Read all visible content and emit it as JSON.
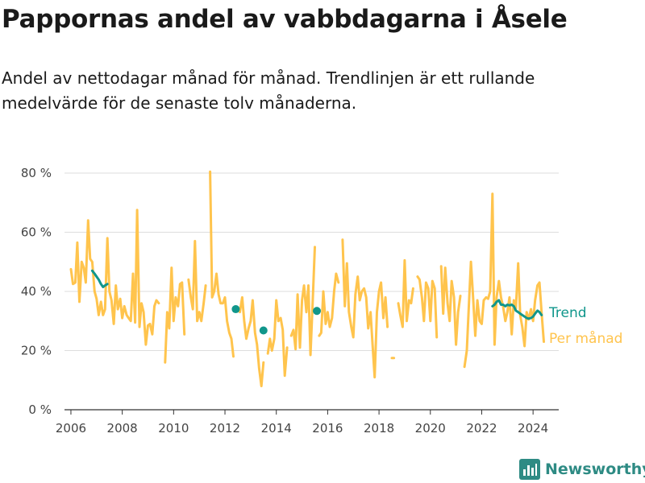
{
  "title": "Pappornas andel av vabbdagarna i Åsele",
  "subtitle": "Andel av nettodagar månad för månad. Trendlinjen är ett rullande medelvärde för de senaste tolv månaderna.",
  "brand": "Newsworthy",
  "colors": {
    "per_month": "#ffc44d",
    "trend": "#10968b",
    "grid": "#dddddd",
    "axis": "#333333",
    "brand": "#2e8b84"
  },
  "chart_data": {
    "type": "line",
    "xlabel": "",
    "ylabel": "",
    "x_range": [
      2005.75,
      2025.0
    ],
    "ylim": [
      0,
      80
    ],
    "y_ticks": [
      0,
      20,
      40,
      60,
      80
    ],
    "y_tick_labels": [
      "0 %",
      "20 %",
      "40 %",
      "60 %",
      "80 %"
    ],
    "x_ticks": [
      2006,
      2008,
      2010,
      2012,
      2014,
      2016,
      2018,
      2020,
      2022,
      2024
    ],
    "grid": "horizontal",
    "legend_placement": "right",
    "series": [
      {
        "name": "Per månad",
        "color": "#ffc44d",
        "points": [
          [
            2006.0,
            47.5
          ],
          [
            2006.08,
            42.5
          ],
          [
            2006.17,
            43.0
          ],
          [
            2006.25,
            56.5
          ],
          [
            2006.33,
            36.5
          ],
          [
            2006.42,
            50.0
          ],
          [
            2006.5,
            48.0
          ],
          [
            2006.58,
            43.0
          ],
          [
            2006.67,
            64.0
          ],
          [
            2006.75,
            51.0
          ],
          [
            2006.83,
            50.0
          ],
          [
            2006.92,
            40.0
          ],
          [
            2007.0,
            37.5
          ],
          [
            2007.08,
            32.0
          ],
          [
            2007.17,
            36.5
          ],
          [
            2007.25,
            32.0
          ],
          [
            2007.33,
            34.0
          ],
          [
            2007.42,
            58.0
          ],
          [
            2007.5,
            40.0
          ],
          [
            2007.58,
            37.0
          ],
          [
            2007.67,
            29.0
          ],
          [
            2007.75,
            42.0
          ],
          [
            2007.83,
            34.0
          ],
          [
            2007.92,
            37.5
          ],
          [
            2008.0,
            31.0
          ],
          [
            2008.08,
            35.0
          ],
          [
            2008.17,
            32.0
          ],
          [
            2008.25,
            31.0
          ],
          [
            2008.33,
            30.0
          ],
          [
            2008.42,
            46.0
          ],
          [
            2008.5,
            29.5
          ],
          [
            2008.58,
            67.5
          ],
          [
            2008.67,
            28.0
          ],
          [
            2008.75,
            36.0
          ],
          [
            2008.83,
            33.0
          ],
          [
            2008.92,
            22.0
          ],
          [
            2009.0,
            28.5
          ],
          [
            2009.08,
            29.0
          ],
          [
            2009.17,
            25.5
          ],
          [
            2009.25,
            35.0
          ],
          [
            2009.33,
            37.0
          ],
          [
            2009.42,
            36.0
          ],
          [
            2009.5,
            null
          ],
          [
            2009.58,
            null
          ],
          [
            2009.67,
            16.0
          ],
          [
            2009.75,
            33.0
          ],
          [
            2009.83,
            27.5
          ],
          [
            2009.92,
            48.0
          ],
          [
            2010.0,
            30.0
          ],
          [
            2010.08,
            38.0
          ],
          [
            2010.17,
            35.0
          ],
          [
            2010.25,
            42.5
          ],
          [
            2010.33,
            43.0
          ],
          [
            2010.42,
            25.5
          ],
          [
            2010.5,
            null
          ],
          [
            2010.58,
            44.0
          ],
          [
            2010.67,
            38.0
          ],
          [
            2010.75,
            34.0
          ],
          [
            2010.83,
            57.0
          ],
          [
            2010.92,
            30.0
          ],
          [
            2011.0,
            33.0
          ],
          [
            2011.08,
            30.0
          ],
          [
            2011.17,
            36.0
          ],
          [
            2011.25,
            42.0
          ],
          [
            2011.33,
            null
          ],
          [
            2011.42,
            80.5
          ],
          [
            2011.5,
            38.0
          ],
          [
            2011.58,
            40.0
          ],
          [
            2011.67,
            46.0
          ],
          [
            2011.75,
            39.0
          ],
          [
            2011.83,
            36.0
          ],
          [
            2011.92,
            36.0
          ],
          [
            2012.0,
            38.0
          ],
          [
            2012.08,
            30.0
          ],
          [
            2012.17,
            26.0
          ],
          [
            2012.25,
            24.0
          ],
          [
            2012.33,
            18.0
          ],
          [
            2012.42,
            null
          ],
          [
            2012.5,
            null
          ],
          [
            2012.58,
            33.0
          ],
          [
            2012.67,
            38.0
          ],
          [
            2012.75,
            30.0
          ],
          [
            2012.83,
            24.0
          ],
          [
            2012.92,
            27.5
          ],
          [
            2013.0,
            30.0
          ],
          [
            2013.08,
            37.0
          ],
          [
            2013.17,
            26.0
          ],
          [
            2013.25,
            22.0
          ],
          [
            2013.33,
            14.0
          ],
          [
            2013.42,
            8.0
          ],
          [
            2013.5,
            16.0
          ],
          [
            2013.58,
            null
          ],
          [
            2013.67,
            19.0
          ],
          [
            2013.75,
            24.0
          ],
          [
            2013.83,
            20.0
          ],
          [
            2013.92,
            24.0
          ],
          [
            2014.0,
            37.0
          ],
          [
            2014.08,
            30.0
          ],
          [
            2014.17,
            31.0
          ],
          [
            2014.25,
            27.0
          ],
          [
            2014.33,
            11.5
          ],
          [
            2014.42,
            21.0
          ],
          [
            2014.5,
            null
          ],
          [
            2014.58,
            25.0
          ],
          [
            2014.67,
            27.0
          ],
          [
            2014.75,
            20.5
          ],
          [
            2014.83,
            39.0
          ],
          [
            2014.92,
            21.0
          ],
          [
            2015.0,
            37.0
          ],
          [
            2015.08,
            42.0
          ],
          [
            2015.17,
            33.0
          ],
          [
            2015.25,
            42.0
          ],
          [
            2015.33,
            18.5
          ],
          [
            2015.42,
            37.0
          ],
          [
            2015.5,
            55.0
          ],
          [
            2015.58,
            null
          ],
          [
            2015.67,
            25.0
          ],
          [
            2015.75,
            26.0
          ],
          [
            2015.83,
            40.0
          ],
          [
            2015.92,
            29.0
          ],
          [
            2016.0,
            33.0
          ],
          [
            2016.08,
            28.0
          ],
          [
            2016.17,
            31.0
          ],
          [
            2016.25,
            40.0
          ],
          [
            2016.33,
            46.0
          ],
          [
            2016.42,
            43.0
          ],
          [
            2016.5,
            null
          ],
          [
            2016.58,
            57.5
          ],
          [
            2016.67,
            35.0
          ],
          [
            2016.75,
            49.5
          ],
          [
            2016.83,
            33.0
          ],
          [
            2016.92,
            28.0
          ],
          [
            2017.0,
            24.5
          ],
          [
            2017.08,
            39.0
          ],
          [
            2017.17,
            45.0
          ],
          [
            2017.25,
            37.0
          ],
          [
            2017.33,
            40.0
          ],
          [
            2017.42,
            41.0
          ],
          [
            2017.5,
            38.0
          ],
          [
            2017.58,
            27.5
          ],
          [
            2017.67,
            33.0
          ],
          [
            2017.75,
            22.0
          ],
          [
            2017.83,
            11.0
          ],
          [
            2017.92,
            33.0
          ],
          [
            2018.0,
            40.0
          ],
          [
            2018.08,
            43.0
          ],
          [
            2018.17,
            31.0
          ],
          [
            2018.25,
            38.0
          ],
          [
            2018.33,
            28.0
          ],
          [
            2018.42,
            null
          ],
          [
            2018.5,
            17.5
          ],
          [
            2018.58,
            17.5
          ],
          [
            2018.67,
            null
          ],
          [
            2018.75,
            36.0
          ],
          [
            2018.83,
            32.0
          ],
          [
            2018.92,
            28.0
          ],
          [
            2019.0,
            50.5
          ],
          [
            2019.08,
            30.0
          ],
          [
            2019.17,
            37.0
          ],
          [
            2019.25,
            36.0
          ],
          [
            2019.33,
            41.0
          ],
          [
            2019.42,
            null
          ],
          [
            2019.5,
            45.0
          ],
          [
            2019.58,
            44.0
          ],
          [
            2019.67,
            38.0
          ],
          [
            2019.75,
            30.0
          ],
          [
            2019.83,
            43.0
          ],
          [
            2019.92,
            41.0
          ],
          [
            2020.0,
            30.0
          ],
          [
            2020.08,
            43.5
          ],
          [
            2020.17,
            41.0
          ],
          [
            2020.25,
            24.5
          ],
          [
            2020.33,
            null
          ],
          [
            2020.42,
            48.5
          ],
          [
            2020.5,
            32.5
          ],
          [
            2020.58,
            48.0
          ],
          [
            2020.67,
            36.0
          ],
          [
            2020.75,
            30.0
          ],
          [
            2020.83,
            43.5
          ],
          [
            2020.92,
            38.0
          ],
          [
            2021.0,
            22.0
          ],
          [
            2021.08,
            33.0
          ],
          [
            2021.17,
            38.5
          ],
          [
            2021.25,
            null
          ],
          [
            2021.33,
            14.5
          ],
          [
            2021.42,
            20.0
          ],
          [
            2021.5,
            35.0
          ],
          [
            2021.58,
            50.0
          ],
          [
            2021.67,
            37.0
          ],
          [
            2021.75,
            25.0
          ],
          [
            2021.83,
            37.0
          ],
          [
            2021.92,
            30.0
          ],
          [
            2022.0,
            29.0
          ],
          [
            2022.08,
            37.0
          ],
          [
            2022.17,
            38.0
          ],
          [
            2022.25,
            37.5
          ],
          [
            2022.33,
            40.0
          ],
          [
            2022.42,
            73.0
          ],
          [
            2022.5,
            22.0
          ],
          [
            2022.58,
            38.0
          ],
          [
            2022.67,
            43.5
          ],
          [
            2022.75,
            38.0
          ],
          [
            2022.83,
            35.0
          ],
          [
            2022.92,
            30.0
          ],
          [
            2023.0,
            33.0
          ],
          [
            2023.08,
            38.0
          ],
          [
            2023.17,
            25.5
          ],
          [
            2023.25,
            37.0
          ],
          [
            2023.33,
            34.0
          ],
          [
            2023.42,
            49.5
          ],
          [
            2023.5,
            32.0
          ],
          [
            2023.58,
            28.0
          ],
          [
            2023.67,
            21.5
          ],
          [
            2023.75,
            33.0
          ],
          [
            2023.83,
            30.5
          ],
          [
            2023.92,
            34.0
          ],
          [
            2024.0,
            30.0
          ],
          [
            2024.08,
            37.0
          ],
          [
            2024.17,
            42.0
          ],
          [
            2024.25,
            43.0
          ],
          [
            2024.33,
            33.0
          ],
          [
            2024.42,
            23.0
          ]
        ]
      },
      {
        "name": "Trend",
        "color": "#10968b",
        "segments": [
          [
            [
              2006.83,
              47.0
            ],
            [
              2006.92,
              46.0
            ],
            [
              2007.0,
              45.0
            ],
            [
              2007.08,
              44.0
            ],
            [
              2007.17,
              42.5
            ],
            [
              2007.25,
              41.5
            ],
            [
              2007.33,
              42.0
            ],
            [
              2007.42,
              42.5
            ]
          ],
          [
            [
              2022.42,
              35.0
            ],
            [
              2022.5,
              35.5
            ],
            [
              2022.58,
              36.5
            ],
            [
              2022.67,
              37.0
            ],
            [
              2022.75,
              35.5
            ],
            [
              2022.83,
              35.5
            ],
            [
              2022.92,
              35.0
            ],
            [
              2023.0,
              35.5
            ],
            [
              2023.08,
              35.3
            ],
            [
              2023.17,
              35.5
            ],
            [
              2023.25,
              35.0
            ],
            [
              2023.33,
              33.5
            ],
            [
              2023.42,
              33.0
            ],
            [
              2023.5,
              32.5
            ],
            [
              2023.58,
              32.0
            ],
            [
              2023.67,
              31.5
            ],
            [
              2023.75,
              31.0
            ],
            [
              2023.83,
              30.8
            ],
            [
              2023.92,
              31.0
            ],
            [
              2024.0,
              31.5
            ],
            [
              2024.08,
              32.5
            ],
            [
              2024.17,
              33.5
            ],
            [
              2024.25,
              33.0
            ],
            [
              2024.33,
              32.0
            ]
          ]
        ],
        "points": [
          [
            2012.42,
            34.0
          ],
          [
            2013.5,
            26.8
          ],
          [
            2015.58,
            33.4
          ]
        ]
      }
    ]
  }
}
